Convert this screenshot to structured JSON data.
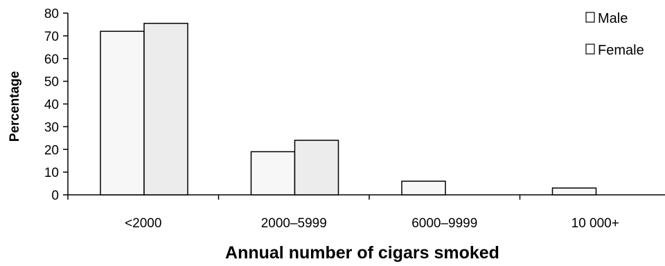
{
  "chart_data": {
    "type": "bar",
    "categories": [
      "<2000",
      "2000–5999",
      "6000–9999",
      "10 000+"
    ],
    "series": [
      {
        "name": "Male",
        "values": [
          72,
          19,
          6,
          3
        ],
        "color": "#f7f7f7"
      },
      {
        "name": "Female",
        "values": [
          75.5,
          24,
          0,
          0
        ],
        "color": "#ececec"
      }
    ],
    "xlabel": "Annual number of cigars smoked",
    "ylabel": "Percentage",
    "ylim": [
      0,
      80
    ],
    "yticks": [
      0,
      10,
      20,
      30,
      40,
      50,
      60,
      70,
      80
    ],
    "grid": false,
    "legend_position": "top-right"
  }
}
